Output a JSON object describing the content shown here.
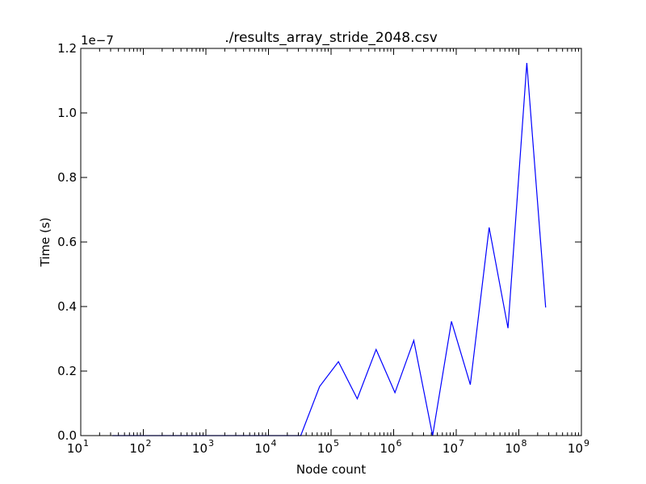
{
  "chart_data": {
    "type": "line",
    "title": "./results_array_stride_2048.csv",
    "xlabel": "Node count",
    "ylabel": "Time (s)",
    "offset_label": "1e−7",
    "xscale": "log",
    "xlim": [
      10,
      1000000000
    ],
    "ylim": [
      0,
      1.2
    ],
    "y_multiplier": 1e-07,
    "grid": false,
    "line_color": "#0000ff",
    "x_ticks": [
      {
        "value": 10,
        "base": "10",
        "exp": "1"
      },
      {
        "value": 100,
        "base": "10",
        "exp": "2"
      },
      {
        "value": 1000,
        "base": "10",
        "exp": "3"
      },
      {
        "value": 10000,
        "base": "10",
        "exp": "4"
      },
      {
        "value": 100000,
        "base": "10",
        "exp": "5"
      },
      {
        "value": 1000000,
        "base": "10",
        "exp": "6"
      },
      {
        "value": 10000000,
        "base": "10",
        "exp": "7"
      },
      {
        "value": 100000000,
        "base": "10",
        "exp": "8"
      },
      {
        "value": 1000000000,
        "base": "10",
        "exp": "9"
      }
    ],
    "y_ticks": [
      {
        "value": 0.0,
        "label": "0.0"
      },
      {
        "value": 0.2,
        "label": "0.2"
      },
      {
        "value": 0.4,
        "label": "0.4"
      },
      {
        "value": 0.6,
        "label": "0.6"
      },
      {
        "value": 0.8,
        "label": "0.8"
      },
      {
        "value": 1.0,
        "label": "1.0"
      },
      {
        "value": 1.2,
        "label": "1.2"
      }
    ],
    "series": [
      {
        "x": [
          32,
          64,
          128,
          256,
          512,
          1024,
          2048,
          4096,
          8192,
          16384,
          32768,
          65536,
          131072,
          262144,
          524288,
          1048576,
          2097152,
          4194304,
          8388608,
          16777216,
          33554432,
          67108864,
          134217728,
          268435456
        ],
        "values": [
          0,
          0,
          0,
          0,
          0,
          0,
          0,
          0,
          0,
          0,
          0,
          0.152,
          0.229,
          0.114,
          0.267,
          0.133,
          0.295,
          0.0,
          0.354,
          0.158,
          0.645,
          0.333,
          1.155,
          0.397
        ]
      }
    ]
  }
}
